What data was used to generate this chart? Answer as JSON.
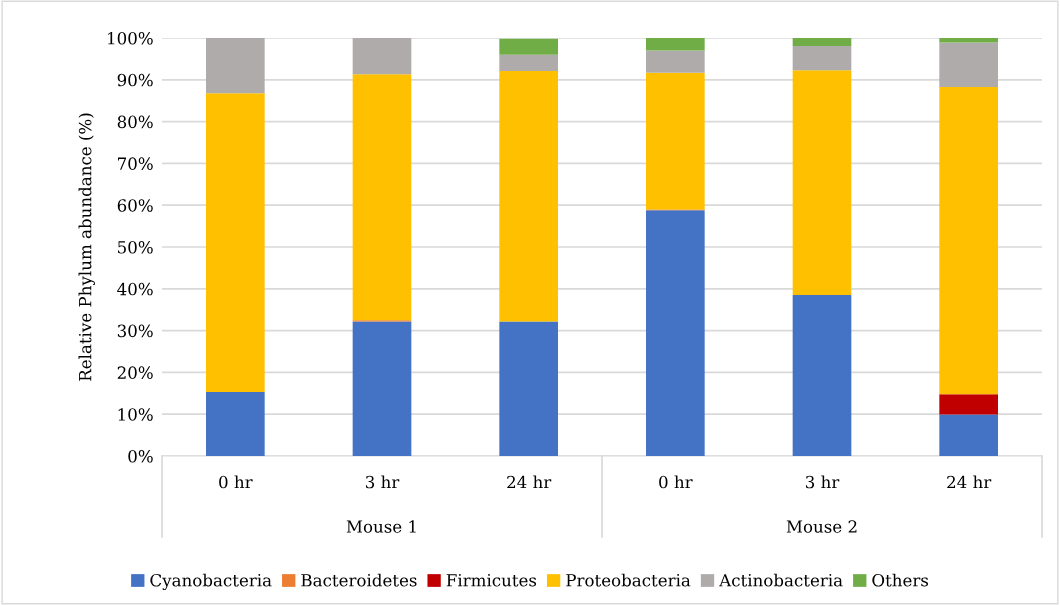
{
  "chart_data": {
    "type": "bar",
    "stacked": true,
    "ylabel": "Relative Phylum abundance (%)",
    "categories": [
      "0 hr",
      "3 hr",
      "24 hr",
      "0 hr",
      "3 hr",
      "24 hr"
    ],
    "series": [
      {
        "name": "Cyanobacteria",
        "color": "#4472c4",
        "values": [
          15.3,
          32.2,
          32.2,
          58.8,
          38.5,
          9.9
        ]
      },
      {
        "name": "Bacteroidetes",
        "color": "#ed7d31",
        "values": [
          0,
          0.3,
          null,
          0.2,
          0,
          0
        ]
      },
      {
        "name": "Firmicutes",
        "color": "#c00000",
        "values": [
          0,
          0,
          0,
          0,
          0,
          4.9
        ]
      },
      {
        "name": "Proteobacteria",
        "color": "#ffc000",
        "values": [
          71.5,
          58.8,
          59.9,
          32.7,
          53.8,
          73.5
        ]
      },
      {
        "name": "Actinobacteria",
        "color": "#afabab",
        "values": [
          13.2,
          8.7,
          3.9,
          5.3,
          5.8,
          10.6
        ]
      },
      {
        "name": "Others",
        "color": "#70ad47",
        "values": [
          0,
          0,
          3.8,
          3.0,
          1.9,
          1.1
        ]
      }
    ],
    "ylim": [
      0,
      100
    ],
    "yticks": [
      {
        "value": 0,
        "label": "0%"
      },
      {
        "value": 10,
        "label": "10%"
      },
      {
        "value": 20,
        "label": "20%"
      },
      {
        "value": 30,
        "label": "30%"
      },
      {
        "value": 40,
        "label": "40%"
      },
      {
        "value": 50,
        "label": "50%"
      },
      {
        "value": 60,
        "label": "60%"
      },
      {
        "value": 70,
        "label": "70%"
      },
      {
        "value": 80,
        "label": "80%"
      },
      {
        "value": 90,
        "label": "90%"
      },
      {
        "value": 100,
        "label": "100%"
      }
    ],
    "annotations": [
      "Mouse 1",
      "Mouse 2"
    ],
    "grid": "y",
    "legend": "bottom"
  }
}
